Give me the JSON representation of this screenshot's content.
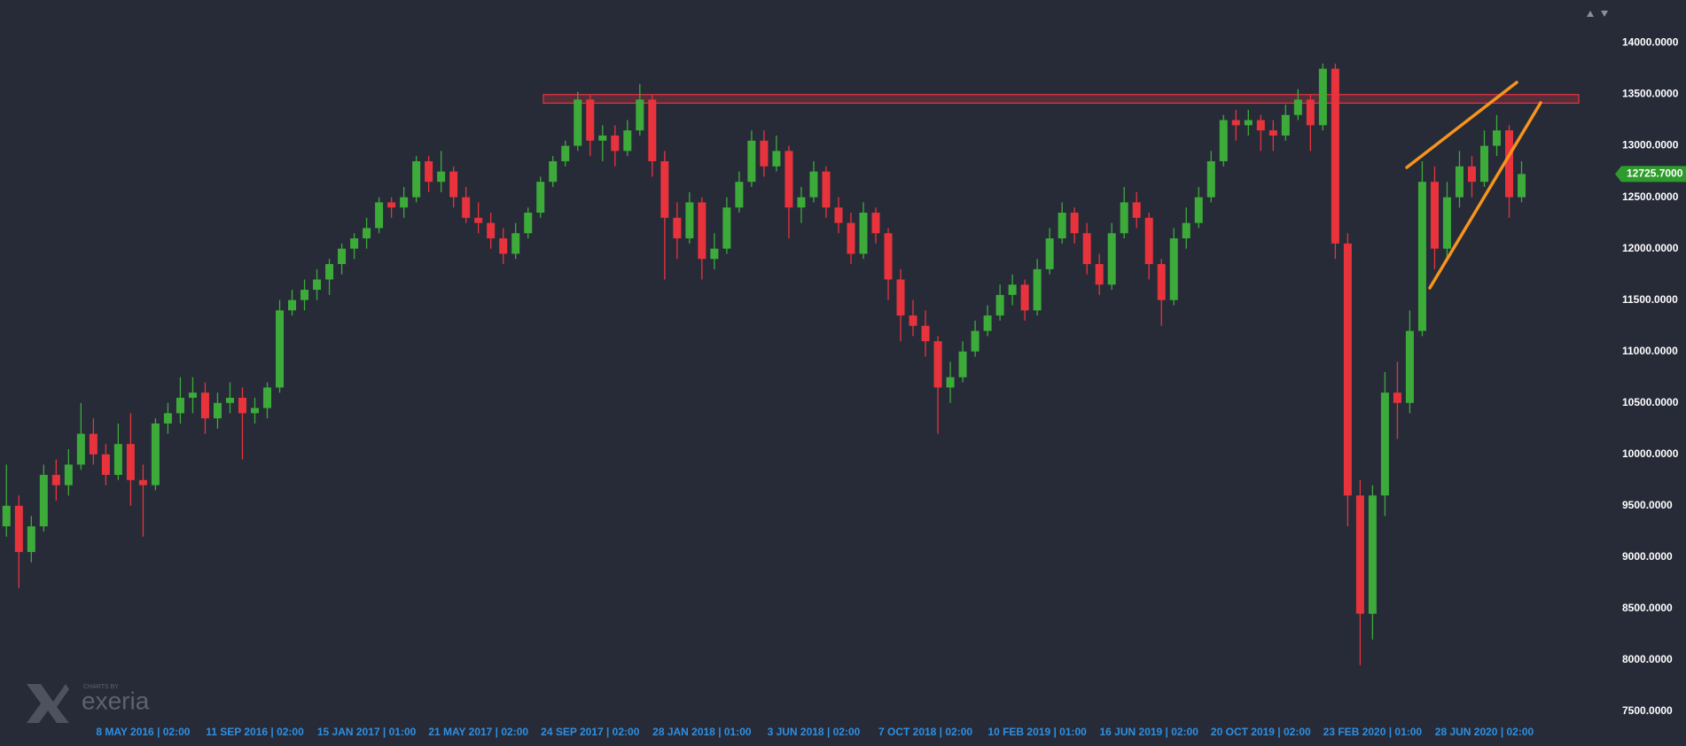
{
  "chart_data": {
    "type": "candlestick",
    "up_color": "#3cab3a",
    "down_color": "#e8333c",
    "categories": [
      null,
      null,
      null,
      null,
      null,
      null,
      null,
      null,
      null,
      null,
      null,
      "8 MAY 2016 | 02:00",
      null,
      null,
      null,
      null,
      null,
      null,
      null,
      null,
      "11 SEP 2016 | 02:00",
      null,
      null,
      null,
      null,
      null,
      null,
      null,
      null,
      "15 JAN 2017 | 01:00",
      null,
      null,
      null,
      null,
      null,
      null,
      null,
      null,
      "21 MAY 2017 | 02:00",
      null,
      null,
      null,
      null,
      null,
      null,
      null,
      null,
      "24 SEP 2017 | 02:00",
      null,
      null,
      null,
      null,
      null,
      null,
      null,
      null,
      "28 JAN 2018 | 01:00",
      null,
      null,
      null,
      null,
      null,
      null,
      null,
      null,
      "3 JUN 2018 | 02:00",
      null,
      null,
      null,
      null,
      null,
      null,
      null,
      null,
      "7 OCT 2018 | 02:00",
      null,
      null,
      null,
      null,
      null,
      null,
      null,
      null,
      "10 FEB 2019 | 01:00",
      null,
      null,
      null,
      null,
      null,
      null,
      null,
      null,
      "16 JUN 2019 | 02:00",
      null,
      null,
      null,
      null,
      null,
      null,
      null,
      null,
      "20 OCT 2019 | 02:00",
      null,
      null,
      null,
      null,
      null,
      null,
      null,
      null,
      "23 FEB 2020 | 01:00",
      null,
      null,
      null,
      null,
      null,
      null,
      null,
      null,
      "28 JUN 2020 | 02:00",
      null,
      null,
      null
    ],
    "open": [
      9300,
      9500,
      9050,
      9300,
      9800,
      9700,
      9900,
      10200,
      10000,
      9800,
      10100,
      9750,
      9700,
      10300,
      10400,
      10550,
      10600,
      10350,
      10500,
      10550,
      10400,
      10450,
      10650,
      11400,
      11500,
      11600,
      11700,
      11850,
      12000,
      12100,
      12200,
      12450,
      12400,
      12500,
      12850,
      12650,
      12750,
      12500,
      12300,
      12250,
      12100,
      11950,
      12150,
      12350,
      12650,
      12850,
      13000,
      13450,
      13050,
      13100,
      12950,
      13150,
      13450,
      12850,
      12300,
      12100,
      12450,
      11900,
      12000,
      12400,
      12650,
      13050,
      12800,
      12950,
      12400,
      12500,
      12750,
      12400,
      12250,
      11950,
      12350,
      12150,
      11700,
      11350,
      11250,
      11100,
      10650,
      10750,
      11000,
      11200,
      11350,
      11550,
      11650,
      11400,
      11800,
      12100,
      12350,
      12150,
      11850,
      11650,
      12150,
      12450,
      12300,
      11850,
      11500,
      12100,
      12250,
      12500,
      12850,
      13250,
      13200,
      13250,
      13150,
      13100,
      13300,
      13450,
      13200,
      13750,
      12050,
      9600,
      8450,
      9600,
      10600,
      10500,
      11200,
      12650,
      12000,
      12500,
      12800,
      12650,
      13000,
      13150,
      12500
    ],
    "high": [
      9900,
      9600,
      9400,
      9900,
      9950,
      10050,
      10500,
      10350,
      10100,
      10300,
      10400,
      9900,
      10350,
      10500,
      10750,
      10750,
      10700,
      10600,
      10700,
      10650,
      10550,
      10700,
      11500,
      11600,
      11700,
      11800,
      11900,
      12050,
      12150,
      12300,
      12500,
      12500,
      12600,
      12900,
      12900,
      12950,
      12800,
      12600,
      12450,
      12350,
      12200,
      12250,
      12400,
      12700,
      12900,
      13050,
      13525,
      13500,
      13200,
      13200,
      13250,
      13600,
      13500,
      12950,
      12450,
      12550,
      12500,
      12150,
      12500,
      12750,
      13150,
      13150,
      13100,
      13000,
      12600,
      12850,
      12800,
      12500,
      12350,
      12450,
      12400,
      12200,
      11800,
      11500,
      11400,
      11150,
      10900,
      11100,
      11300,
      11450,
      11650,
      11750,
      11700,
      11900,
      12200,
      12450,
      12400,
      12250,
      11950,
      12250,
      12600,
      12550,
      12350,
      11900,
      12200,
      12400,
      12600,
      12950,
      13300,
      13350,
      13350,
      13300,
      13250,
      13400,
      13550,
      13500,
      13800,
      13800,
      12150,
      9750,
      9700,
      10800,
      10900,
      11400,
      12850,
      12800,
      12650,
      12950,
      12900,
      13150,
      13300,
      13200,
      12850
    ],
    "low": [
      9200,
      8700,
      8950,
      9250,
      9550,
      9600,
      9850,
      9900,
      9700,
      9750,
      9500,
      9200,
      9650,
      10200,
      10300,
      10400,
      10200,
      10250,
      10400,
      9950,
      10300,
      10350,
      10600,
      11350,
      11400,
      11500,
      11550,
      11750,
      11900,
      12000,
      12150,
      12300,
      12300,
      12450,
      12550,
      12550,
      12400,
      12250,
      12150,
      12000,
      11850,
      11900,
      12100,
      12300,
      12600,
      12800,
      12950,
      12900,
      12850,
      12800,
      12900,
      13100,
      12700,
      11700,
      11900,
      12050,
      11700,
      11800,
      11950,
      12350,
      12600,
      12700,
      12750,
      12100,
      12250,
      12450,
      12300,
      12150,
      11850,
      11900,
      12050,
      11500,
      11100,
      11150,
      10950,
      10200,
      10500,
      10700,
      10950,
      11150,
      11300,
      11450,
      11300,
      11350,
      11750,
      12050,
      12050,
      11750,
      11550,
      11600,
      12100,
      12200,
      11700,
      11250,
      11450,
      12000,
      12200,
      12450,
      12800,
      13050,
      13100,
      12950,
      12950,
      13050,
      13250,
      12950,
      13150,
      11900,
      9300,
      7950,
      8200,
      9400,
      10150,
      10400,
      11150,
      11800,
      11900,
      12400,
      12500,
      12600,
      12900,
      12300,
      12450
    ],
    "close": [
      9500,
      9050,
      9300,
      9800,
      9700,
      9900,
      10200,
      10000,
      9800,
      10100,
      9750,
      9700,
      10300,
      10400,
      10550,
      10600,
      10350,
      10500,
      10550,
      10400,
      10450,
      10650,
      11400,
      11500,
      11600,
      11700,
      11850,
      12000,
      12100,
      12200,
      12450,
      12400,
      12500,
      12850,
      12650,
      12750,
      12500,
      12300,
      12250,
      12100,
      11950,
      12150,
      12350,
      12650,
      12850,
      13000,
      13450,
      13050,
      13100,
      12950,
      13150,
      13450,
      12850,
      12300,
      12100,
      12450,
      11900,
      12000,
      12400,
      12650,
      13050,
      12800,
      12950,
      12400,
      12500,
      12750,
      12400,
      12250,
      11950,
      12350,
      12150,
      11700,
      11350,
      11250,
      11100,
      10650,
      10750,
      11000,
      11200,
      11350,
      11550,
      11650,
      11400,
      11800,
      12100,
      12350,
      12150,
      11850,
      11650,
      12150,
      12450,
      12300,
      11850,
      11500,
      12100,
      12250,
      12500,
      12850,
      13250,
      13200,
      13250,
      13150,
      13100,
      13300,
      13450,
      13200,
      13750,
      12050,
      9600,
      8450,
      9600,
      10600,
      10500,
      11200,
      12650,
      12000,
      12500,
      12800,
      12650,
      13000,
      13150,
      12500,
      12725.7
    ],
    "ylim": [
      7500,
      14000
    ],
    "yticks": [
      {
        "value": 7500,
        "label": "7500.0000"
      },
      {
        "value": 8000,
        "label": "8000.0000"
      },
      {
        "value": 8500,
        "label": "8500.0000"
      },
      {
        "value": 9000,
        "label": "9000.0000"
      },
      {
        "value": 9500,
        "label": "9500.0000"
      },
      {
        "value": 10000,
        "label": "10000.0000"
      },
      {
        "value": 10500,
        "label": "10500.0000"
      },
      {
        "value": 11000,
        "label": "11000.0000"
      },
      {
        "value": 11500,
        "label": "11500.0000"
      },
      {
        "value": 12000,
        "label": "12000.0000"
      },
      {
        "value": 12500,
        "label": "12500.0000"
      },
      {
        "value": 13000,
        "label": "13000.0000"
      },
      {
        "value": 13500,
        "label": "13500.0000"
      },
      {
        "value": 14000,
        "label": "14000.0000"
      }
    ],
    "last_price": {
      "value": 12725.7,
      "label": "12725.7000",
      "color": "#2e9c2c"
    },
    "resistance_zone": {
      "low": 13415,
      "high": 13498,
      "color": "#e8333c"
    },
    "logo": {
      "caption": "CHARTS BY",
      "name": "exeria"
    }
  }
}
